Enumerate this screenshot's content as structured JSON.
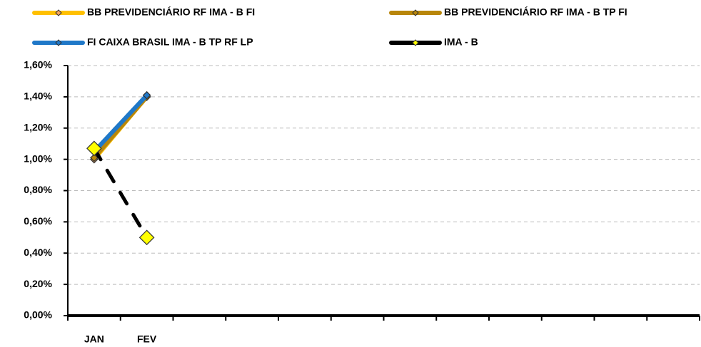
{
  "chart_data": {
    "type": "line",
    "categories": [
      "JAN",
      "FEV",
      null,
      null,
      null,
      null,
      null,
      null,
      null,
      null,
      null,
      null
    ],
    "series": [
      {
        "name": "BB PREVIDENCIÁRIO RF IMA - B FI",
        "color": "#FFC000",
        "marker_color": "#F4A460",
        "line_style": "solid",
        "marker_size": 5,
        "values": [
          1.0,
          1.4,
          null,
          null,
          null,
          null,
          null,
          null,
          null,
          null,
          null,
          null
        ]
      },
      {
        "name": "BB PREVIDENCIÁRIO RF IMA - B TP FI",
        "color": "#B8860B",
        "marker_color": "#B8860B",
        "line_style": "solid",
        "marker_size": 5,
        "values": [
          1.01,
          1.4,
          null,
          null,
          null,
          null,
          null,
          null,
          null,
          null,
          null,
          null
        ]
      },
      {
        "name": "FI CAIXA BRASIL IMA - B TP RF LP",
        "color": "#1F78C8",
        "marker_color": "#1F78C8",
        "line_style": "solid",
        "marker_size": 5,
        "values": [
          1.05,
          1.41,
          null,
          null,
          null,
          null,
          null,
          null,
          null,
          null,
          null,
          null
        ]
      },
      {
        "name": "IMA - B",
        "color": "#000000",
        "marker_color": "#FFFF00",
        "line_style": "dashed",
        "marker_size": 10,
        "values": [
          1.07,
          0.5,
          null,
          null,
          null,
          null,
          null,
          null,
          null,
          null,
          null,
          null
        ]
      }
    ],
    "ylim": [
      0,
      1.6
    ],
    "yticks": [
      {
        "value": 0,
        "label": "0,00%"
      },
      {
        "value": 0.2,
        "label": "0,20%"
      },
      {
        "value": 0.4,
        "label": "0,40%"
      },
      {
        "value": 0.6,
        "label": "0,60%"
      },
      {
        "value": 0.8,
        "label": "0,80%"
      },
      {
        "value": 1.0,
        "label": "1,00%"
      },
      {
        "value": 1.2,
        "label": "1,20%"
      },
      {
        "value": 1.4,
        "label": "1,40%"
      },
      {
        "value": 1.6,
        "label": "1,60%"
      }
    ],
    "grid": true,
    "legend": "top"
  }
}
